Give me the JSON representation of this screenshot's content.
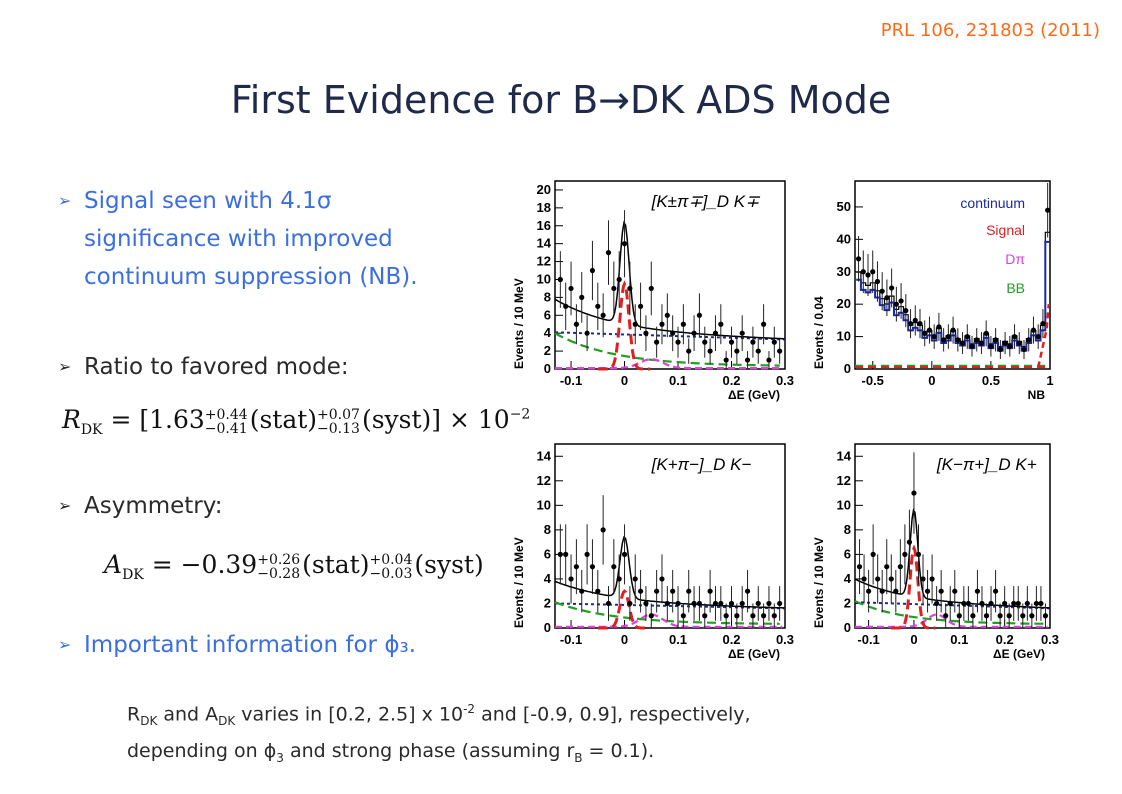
{
  "reference": "PRL 106, 231803 (2011)",
  "title": {
    "prefix": "First Evidence for B",
    "arrow": "→",
    "suffix": "DK ADS Mode"
  },
  "bullets": [
    {
      "lines": [
        "Signal seen with 4.1σ",
        "significance with improved",
        "continuum suppression (NB)."
      ],
      "color": "#3b6fe0"
    },
    {
      "lines": [
        "Ratio to favored mode:"
      ],
      "color": "#2a2a2a"
    },
    {
      "lines": [
        "Asymmetry:"
      ],
      "color": "#2a2a2a"
    },
    {
      "lines": [
        "Important information for ϕ₃."
      ],
      "color": "#3b6fe0"
    }
  ],
  "formulas": {
    "r_dk": {
      "symbol": "R",
      "sub": "DK",
      "value": "= [1.63",
      "stat_up": "+0.44",
      "stat_dn": "−0.41",
      "stat": "(stat)",
      "syst_up": "+0.07",
      "syst_dn": "−0.13",
      "syst": "(syst)] × 10",
      "exp": "−2"
    },
    "a_dk": {
      "symbol": "A",
      "sub": "DK",
      "value": "= −0.39",
      "stat_up": "+0.26",
      "stat_dn": "−0.28",
      "stat": "(stat)",
      "syst_up": "+0.04",
      "syst_dn": "−0.03",
      "syst": "(syst)"
    }
  },
  "note": {
    "line1_a": "R",
    "line1_a_sub": "DK",
    "line1_b": " and A",
    "line1_b_sub": "DK",
    "line1_c": " varies in [0.2, 2.5] x 10",
    "line1_c_sup": "-2",
    "line1_d": " and [-0.9, 0.9], respectively,",
    "line2_a": "depending on ϕ",
    "line2_a_sub": "3",
    "line2_b": " and strong phase (assuming r",
    "line2_b_sub": "B",
    "line2_c": " = 0.1)."
  },
  "legend": {
    "continuum": {
      "label": "continuum",
      "color": "#1a2a9c"
    },
    "signal": {
      "label": "Signal",
      "color": "#e02020"
    },
    "dpi": {
      "label": "Dπ",
      "color": "#e040e0"
    },
    "bb": {
      "label": "BB",
      "color": "#20a020"
    }
  },
  "chart_data": [
    {
      "type": "scatter",
      "title": "[K±π∓]_D K∓",
      "xlabel": "ΔE (GeV)",
      "ylabel": "Events / 10 MeV",
      "xlim": [
        -0.13,
        0.3
      ],
      "ylim": [
        0,
        21
      ],
      "xticks": [
        "-0.1",
        "0",
        "0.1",
        "0.2",
        "0.3"
      ],
      "yticks": [
        "0",
        "2",
        "4",
        "6",
        "8",
        "10",
        "12",
        "14",
        "16",
        "18",
        "20"
      ],
      "points": [
        [
          -0.12,
          10
        ],
        [
          -0.11,
          7
        ],
        [
          -0.1,
          9
        ],
        [
          -0.09,
          5
        ],
        [
          -0.08,
          8
        ],
        [
          -0.07,
          4
        ],
        [
          -0.06,
          11
        ],
        [
          -0.05,
          7
        ],
        [
          -0.04,
          6
        ],
        [
          -0.03,
          13
        ],
        [
          -0.02,
          9
        ],
        [
          -0.01,
          10
        ],
        [
          0.0,
          14
        ],
        [
          0.01,
          9
        ],
        [
          0.02,
          5
        ],
        [
          0.03,
          7
        ],
        [
          0.04,
          4
        ],
        [
          0.05,
          9
        ],
        [
          0.06,
          3
        ],
        [
          0.07,
          5
        ],
        [
          0.08,
          6
        ],
        [
          0.09,
          4
        ],
        [
          0.1,
          3
        ],
        [
          0.11,
          5
        ],
        [
          0.12,
          2
        ],
        [
          0.13,
          4
        ],
        [
          0.14,
          6
        ],
        [
          0.15,
          3
        ],
        [
          0.16,
          2
        ],
        [
          0.17,
          4
        ],
        [
          0.18,
          5
        ],
        [
          0.19,
          1
        ],
        [
          0.2,
          3
        ],
        [
          0.21,
          2
        ],
        [
          0.22,
          4
        ],
        [
          0.23,
          1
        ],
        [
          0.24,
          3
        ],
        [
          0.25,
          2
        ],
        [
          0.26,
          5
        ],
        [
          0.27,
          1
        ],
        [
          0.28,
          3
        ],
        [
          0.29,
          2
        ]
      ],
      "peak": 15.5,
      "signal_peak": 9.5,
      "continuum": [
        4.1,
        3.3
      ]
    },
    {
      "type": "scatter",
      "title": "",
      "xlabel": "NB",
      "ylabel": "Events / 0.04",
      "xlim": [
        -0.65,
        1.0
      ],
      "ylim": [
        0,
        58
      ],
      "xticks": [
        "-0.5",
        "0",
        "0.5",
        "1"
      ],
      "yticks": [
        "0",
        "10",
        "20",
        "30",
        "40",
        "50"
      ],
      "points": [
        [
          -0.62,
          34
        ],
        [
          -0.58,
          30
        ],
        [
          -0.54,
          29
        ],
        [
          -0.5,
          30
        ],
        [
          -0.46,
          27
        ],
        [
          -0.42,
          24
        ],
        [
          -0.38,
          22
        ],
        [
          -0.34,
          25
        ],
        [
          -0.3,
          20
        ],
        [
          -0.26,
          21
        ],
        [
          -0.22,
          18
        ],
        [
          -0.18,
          14
        ],
        [
          -0.14,
          15
        ],
        [
          -0.1,
          14
        ],
        [
          -0.06,
          11
        ],
        [
          -0.02,
          12
        ],
        [
          0.02,
          10
        ],
        [
          0.06,
          13
        ],
        [
          0.1,
          9
        ],
        [
          0.14,
          10
        ],
        [
          0.18,
          12
        ],
        [
          0.22,
          9
        ],
        [
          0.26,
          8
        ],
        [
          0.3,
          10
        ],
        [
          0.34,
          7
        ],
        [
          0.38,
          9
        ],
        [
          0.42,
          8
        ],
        [
          0.46,
          11
        ],
        [
          0.5,
          7
        ],
        [
          0.54,
          9
        ],
        [
          0.58,
          6
        ],
        [
          0.62,
          8
        ],
        [
          0.66,
          7
        ],
        [
          0.7,
          10
        ],
        [
          0.74,
          8
        ],
        [
          0.78,
          6
        ],
        [
          0.82,
          9
        ],
        [
          0.86,
          12
        ],
        [
          0.9,
          10
        ],
        [
          0.94,
          14
        ],
        [
          0.98,
          49
        ]
      ]
    },
    {
      "type": "scatter",
      "title": "[K+π−]_D K−",
      "xlabel": "ΔE (GeV)",
      "ylabel": "Events / 10 MeV",
      "xlim": [
        -0.13,
        0.3
      ],
      "ylim": [
        0,
        15
      ],
      "xticks": [
        "-0.1",
        "0",
        "0.1",
        "0.2",
        "0.3"
      ],
      "yticks": [
        "0",
        "2",
        "4",
        "6",
        "8",
        "10",
        "12",
        "14"
      ],
      "points": [
        [
          -0.12,
          6
        ],
        [
          -0.11,
          6
        ],
        [
          -0.1,
          4
        ],
        [
          -0.09,
          5
        ],
        [
          -0.08,
          3
        ],
        [
          -0.07,
          6
        ],
        [
          -0.06,
          5
        ],
        [
          -0.05,
          3
        ],
        [
          -0.04,
          8
        ],
        [
          -0.03,
          2
        ],
        [
          -0.02,
          5
        ],
        [
          -0.01,
          4
        ],
        [
          0.0,
          6
        ],
        [
          0.01,
          2
        ],
        [
          0.02,
          4
        ],
        [
          0.03,
          3
        ],
        [
          0.04,
          2
        ],
        [
          0.05,
          1
        ],
        [
          0.06,
          3
        ],
        [
          0.07,
          4
        ],
        [
          0.08,
          2
        ],
        [
          0.09,
          3
        ],
        [
          0.1,
          2
        ],
        [
          0.11,
          1
        ],
        [
          0.12,
          3
        ],
        [
          0.13,
          2
        ],
        [
          0.14,
          2
        ],
        [
          0.15,
          1
        ],
        [
          0.16,
          3
        ],
        [
          0.17,
          2
        ],
        [
          0.18,
          2
        ],
        [
          0.19,
          1
        ],
        [
          0.2,
          2
        ],
        [
          0.21,
          1
        ],
        [
          0.22,
          2
        ],
        [
          0.23,
          3
        ],
        [
          0.24,
          1
        ],
        [
          0.25,
          2
        ],
        [
          0.26,
          1
        ],
        [
          0.27,
          2
        ],
        [
          0.28,
          1
        ],
        [
          0.29,
          2
        ]
      ],
      "peak": 7.0,
      "signal_peak": 3.0,
      "continuum": [
        2.0,
        1.6
      ]
    },
    {
      "type": "scatter",
      "title": "[K−π+]_D K+",
      "xlabel": "ΔE (GeV)",
      "ylabel": "Events / 10 MeV",
      "xlim": [
        -0.13,
        0.3
      ],
      "ylim": [
        0,
        15
      ],
      "xticks": [
        "-0.1",
        "0",
        "0.1",
        "0.2",
        "0.3"
      ],
      "yticks": [
        "0",
        "2",
        "4",
        "6",
        "8",
        "10",
        "12",
        "14"
      ],
      "points": [
        [
          -0.12,
          5
        ],
        [
          -0.11,
          4
        ],
        [
          -0.1,
          3
        ],
        [
          -0.09,
          6
        ],
        [
          -0.08,
          4
        ],
        [
          -0.07,
          3
        ],
        [
          -0.06,
          5
        ],
        [
          -0.05,
          4
        ],
        [
          -0.04,
          3
        ],
        [
          -0.03,
          5
        ],
        [
          -0.02,
          6
        ],
        [
          -0.01,
          7
        ],
        [
          0.0,
          11
        ],
        [
          0.01,
          6
        ],
        [
          0.02,
          4
        ],
        [
          0.03,
          3
        ],
        [
          0.04,
          4
        ],
        [
          0.05,
          2
        ],
        [
          0.06,
          3
        ],
        [
          0.07,
          1
        ],
        [
          0.08,
          2
        ],
        [
          0.09,
          3
        ],
        [
          0.1,
          1
        ],
        [
          0.11,
          2
        ],
        [
          0.12,
          2
        ],
        [
          0.13,
          1
        ],
        [
          0.14,
          3
        ],
        [
          0.15,
          2
        ],
        [
          0.16,
          1
        ],
        [
          0.17,
          2
        ],
        [
          0.18,
          3
        ],
        [
          0.19,
          1
        ],
        [
          0.2,
          2
        ],
        [
          0.21,
          1
        ],
        [
          0.22,
          2
        ],
        [
          0.23,
          2
        ],
        [
          0.24,
          1
        ],
        [
          0.25,
          2
        ],
        [
          0.26,
          1
        ],
        [
          0.27,
          2
        ],
        [
          0.28,
          2
        ],
        [
          0.29,
          1
        ]
      ],
      "peak": 9.2,
      "signal_peak": 6.5,
      "continuum": [
        2.1,
        1.6
      ]
    }
  ]
}
